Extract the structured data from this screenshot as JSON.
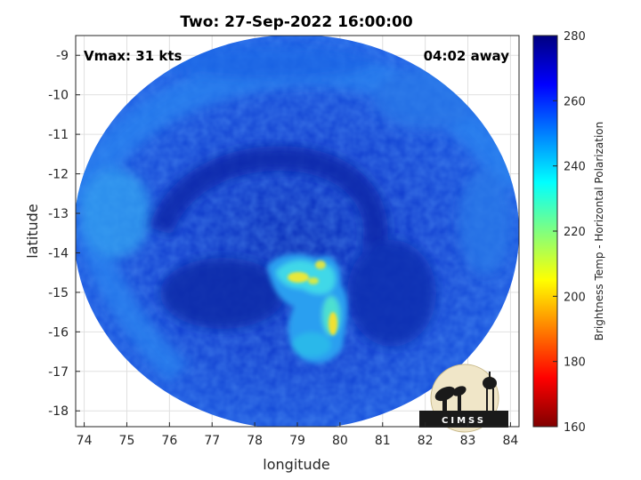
{
  "title": "Two: 27-Sep-2022 16:00:00",
  "vmax_text": "Vmax: 31 kts",
  "away_text": "04:02 away",
  "xlabel": "longitude",
  "ylabel": "latitude",
  "colorbar_label": "Brightness Temp - Horizontal Polarization",
  "logo_text": "CIMSS",
  "x_ticks": [
    "74",
    "75",
    "76",
    "77",
    "78",
    "79",
    "80",
    "81",
    "82",
    "83",
    "84"
  ],
  "y_ticks": [
    "-9",
    "-10",
    "-11",
    "-12",
    "-13",
    "-14",
    "-15",
    "-16",
    "-17",
    "-18"
  ],
  "colorbar_ticks": [
    "280",
    "260",
    "240",
    "220",
    "200",
    "180",
    "160"
  ],
  "colors": {
    "background_blue": "#1a55e0",
    "deep_blue": "#0a2ab0",
    "cyan": "#22c8e8",
    "yellow": "#ffe020"
  },
  "chart_data": {
    "type": "heatmap",
    "title": "Two: 27-Sep-2022 16:00:00",
    "xlabel": "longitude",
    "ylabel": "latitude",
    "xlim": [
      73.8,
      84.2
    ],
    "ylim": [
      -18.4,
      -8.5
    ],
    "colorbar": {
      "label": "Brightness Temp - Horizontal Polarization",
      "min": 160,
      "max": 280,
      "colormap": "jet"
    },
    "swath_center": [
      79.0,
      -13.5
    ],
    "swath_radius_deg": 5.6,
    "features": [
      {
        "name": "convective core north",
        "lon": 79.3,
        "lat": -14.6,
        "value": 205
      },
      {
        "name": "convective core south",
        "lon": 79.9,
        "lat": -15.8,
        "value": 205
      },
      {
        "name": "convective band",
        "lon": 79.4,
        "lat": -15.3,
        "value": 240
      }
    ],
    "grid": true
  }
}
